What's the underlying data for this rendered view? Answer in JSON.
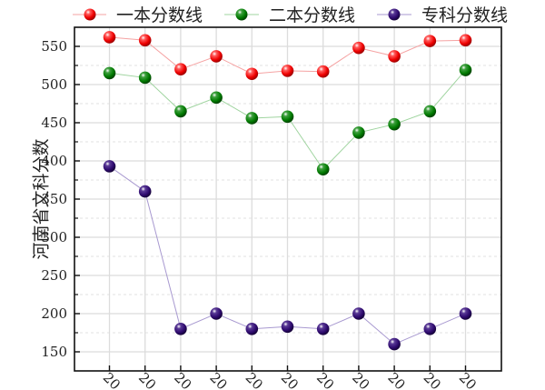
{
  "chart_data": {
    "type": "line",
    "title": "",
    "xlabel": "",
    "ylabel": "河南省文科分数",
    "x_tick_labels_visible_text": "20",
    "categories": [
      "20",
      "20",
      "20",
      "20",
      "20",
      "20",
      "20",
      "20",
      "20",
      "20",
      "20"
    ],
    "ylim": [
      125,
      575
    ],
    "yticks": [
      150,
      200,
      250,
      300,
      350,
      400,
      450,
      500,
      550
    ],
    "grid": true,
    "legend_position": "top",
    "series": [
      {
        "name": "一本分数线",
        "color": "#ff0000",
        "line_color": "#f5a3a3",
        "values": [
          562,
          558,
          520,
          537,
          514,
          518,
          517,
          548,
          537,
          557,
          558
        ]
      },
      {
        "name": "二本分数线",
        "color": "#008000",
        "line_color": "#9fd49f",
        "values": [
          515,
          509,
          465,
          483,
          456,
          458,
          389,
          437,
          448,
          465,
          519
        ]
      },
      {
        "name": "专科分数线",
        "color": "#2e0a6e",
        "line_color": "#a899d0",
        "values": [
          393,
          360,
          180,
          200,
          180,
          183,
          180,
          200,
          160,
          180,
          200
        ]
      }
    ]
  },
  "legend": {
    "items": [
      {
        "label": "一本分数线"
      },
      {
        "label": "二本分数线"
      },
      {
        "label": "专科分数线"
      }
    ]
  },
  "axes": {
    "ylabel": "河南省文科分数"
  }
}
